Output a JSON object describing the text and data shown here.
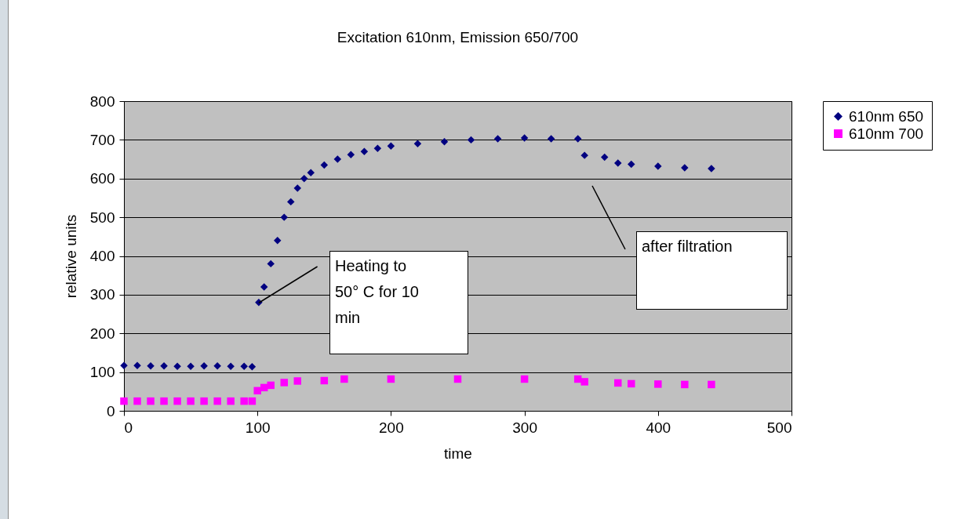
{
  "chart_data": {
    "type": "scatter",
    "title": "Excitation 610nm,  Emission 650/700",
    "xlabel": "time",
    "ylabel": "relative units",
    "xlim": [
      0,
      500
    ],
    "xticks": [
      0,
      100,
      200,
      300,
      400,
      500
    ],
    "ylim": [
      0,
      800
    ],
    "yticks": [
      0,
      100,
      200,
      300,
      400,
      500,
      600,
      700,
      800
    ],
    "grid": "y",
    "legend": "right",
    "series": [
      {
        "name": "610nm 650",
        "color": "#000080",
        "marker": "diamond",
        "x": [
          0,
          10,
          20,
          30,
          40,
          50,
          60,
          70,
          80,
          90,
          96,
          101,
          105,
          110,
          115,
          120,
          125,
          130,
          135,
          140,
          150,
          160,
          170,
          180,
          190,
          200,
          220,
          240,
          260,
          280,
          300,
          320,
          340,
          345,
          360,
          370,
          380,
          400,
          420,
          440
        ],
        "values": [
          117,
          117,
          116,
          116,
          115,
          115,
          116,
          116,
          115,
          115,
          114,
          280,
          320,
          380,
          440,
          500,
          540,
          575,
          600,
          615,
          635,
          650,
          662,
          670,
          678,
          684,
          690,
          695,
          700,
          703,
          705,
          703,
          703,
          660,
          655,
          640,
          637,
          632,
          628,
          626
        ]
      },
      {
        "name": "610nm 700",
        "color": "#ff00ff",
        "marker": "square",
        "x": [
          0,
          10,
          20,
          30,
          40,
          50,
          60,
          70,
          80,
          90,
          96,
          100,
          105,
          110,
          120,
          130,
          150,
          165,
          200,
          250,
          300,
          340,
          345,
          370,
          380,
          400,
          420,
          440
        ],
        "values": [
          25,
          25,
          25,
          25,
          25,
          25,
          25,
          25,
          25,
          25,
          25,
          52,
          60,
          66,
          73,
          77,
          78,
          82,
          82,
          82,
          82,
          82,
          75,
          72,
          70,
          69,
          68,
          68
        ]
      }
    ],
    "annotations": [
      {
        "text": "Heating to 50° C for 10 min",
        "x": 101,
        "y": 280
      },
      "after filtration"
    ]
  }
}
